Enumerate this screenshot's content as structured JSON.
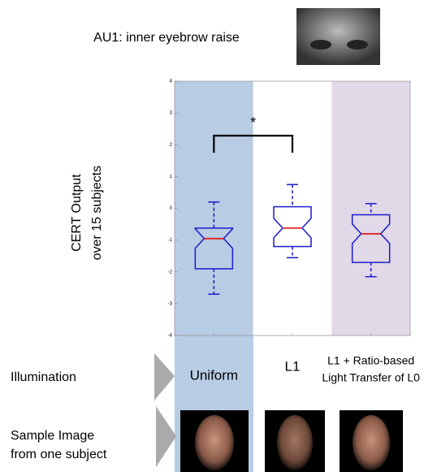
{
  "title": "AU1: inner eyebrow raise",
  "chart_data": {
    "type": "box",
    "y_label_lines": [
      "CERT  Output",
      "over 15 subjects"
    ],
    "categories": [
      [
        "Uniform"
      ],
      [
        "L1"
      ],
      [
        "L1  + Ratio-based",
        "Light Transfer of L0"
      ]
    ],
    "band_colors": [
      "#b8cce4",
      null,
      "#e2d9e8"
    ],
    "box_color": "#1a1acc",
    "median_color": "#e02020",
    "boxes": [
      {
        "whislo": -2.7,
        "q1": -1.9,
        "med": -0.95,
        "q3": -0.62,
        "whishi": 0.2
      },
      {
        "whislo": -1.55,
        "q1": -1.2,
        "med": -0.62,
        "q3": 0.05,
        "whishi": 0.75
      },
      {
        "whislo": -2.15,
        "q1": -1.7,
        "med": -0.8,
        "q3": -0.2,
        "whishi": 0.15
      }
    ],
    "ylim": [
      -4,
      4
    ],
    "yticks": [
      -4,
      -3,
      -2,
      -1,
      0,
      1,
      2,
      3,
      4
    ],
    "annotation": {
      "text": "*",
      "between": [
        0,
        1
      ]
    }
  },
  "row_labels": [
    [
      "Illumination"
    ],
    [
      "Sample Image",
      "from one subject"
    ]
  ]
}
